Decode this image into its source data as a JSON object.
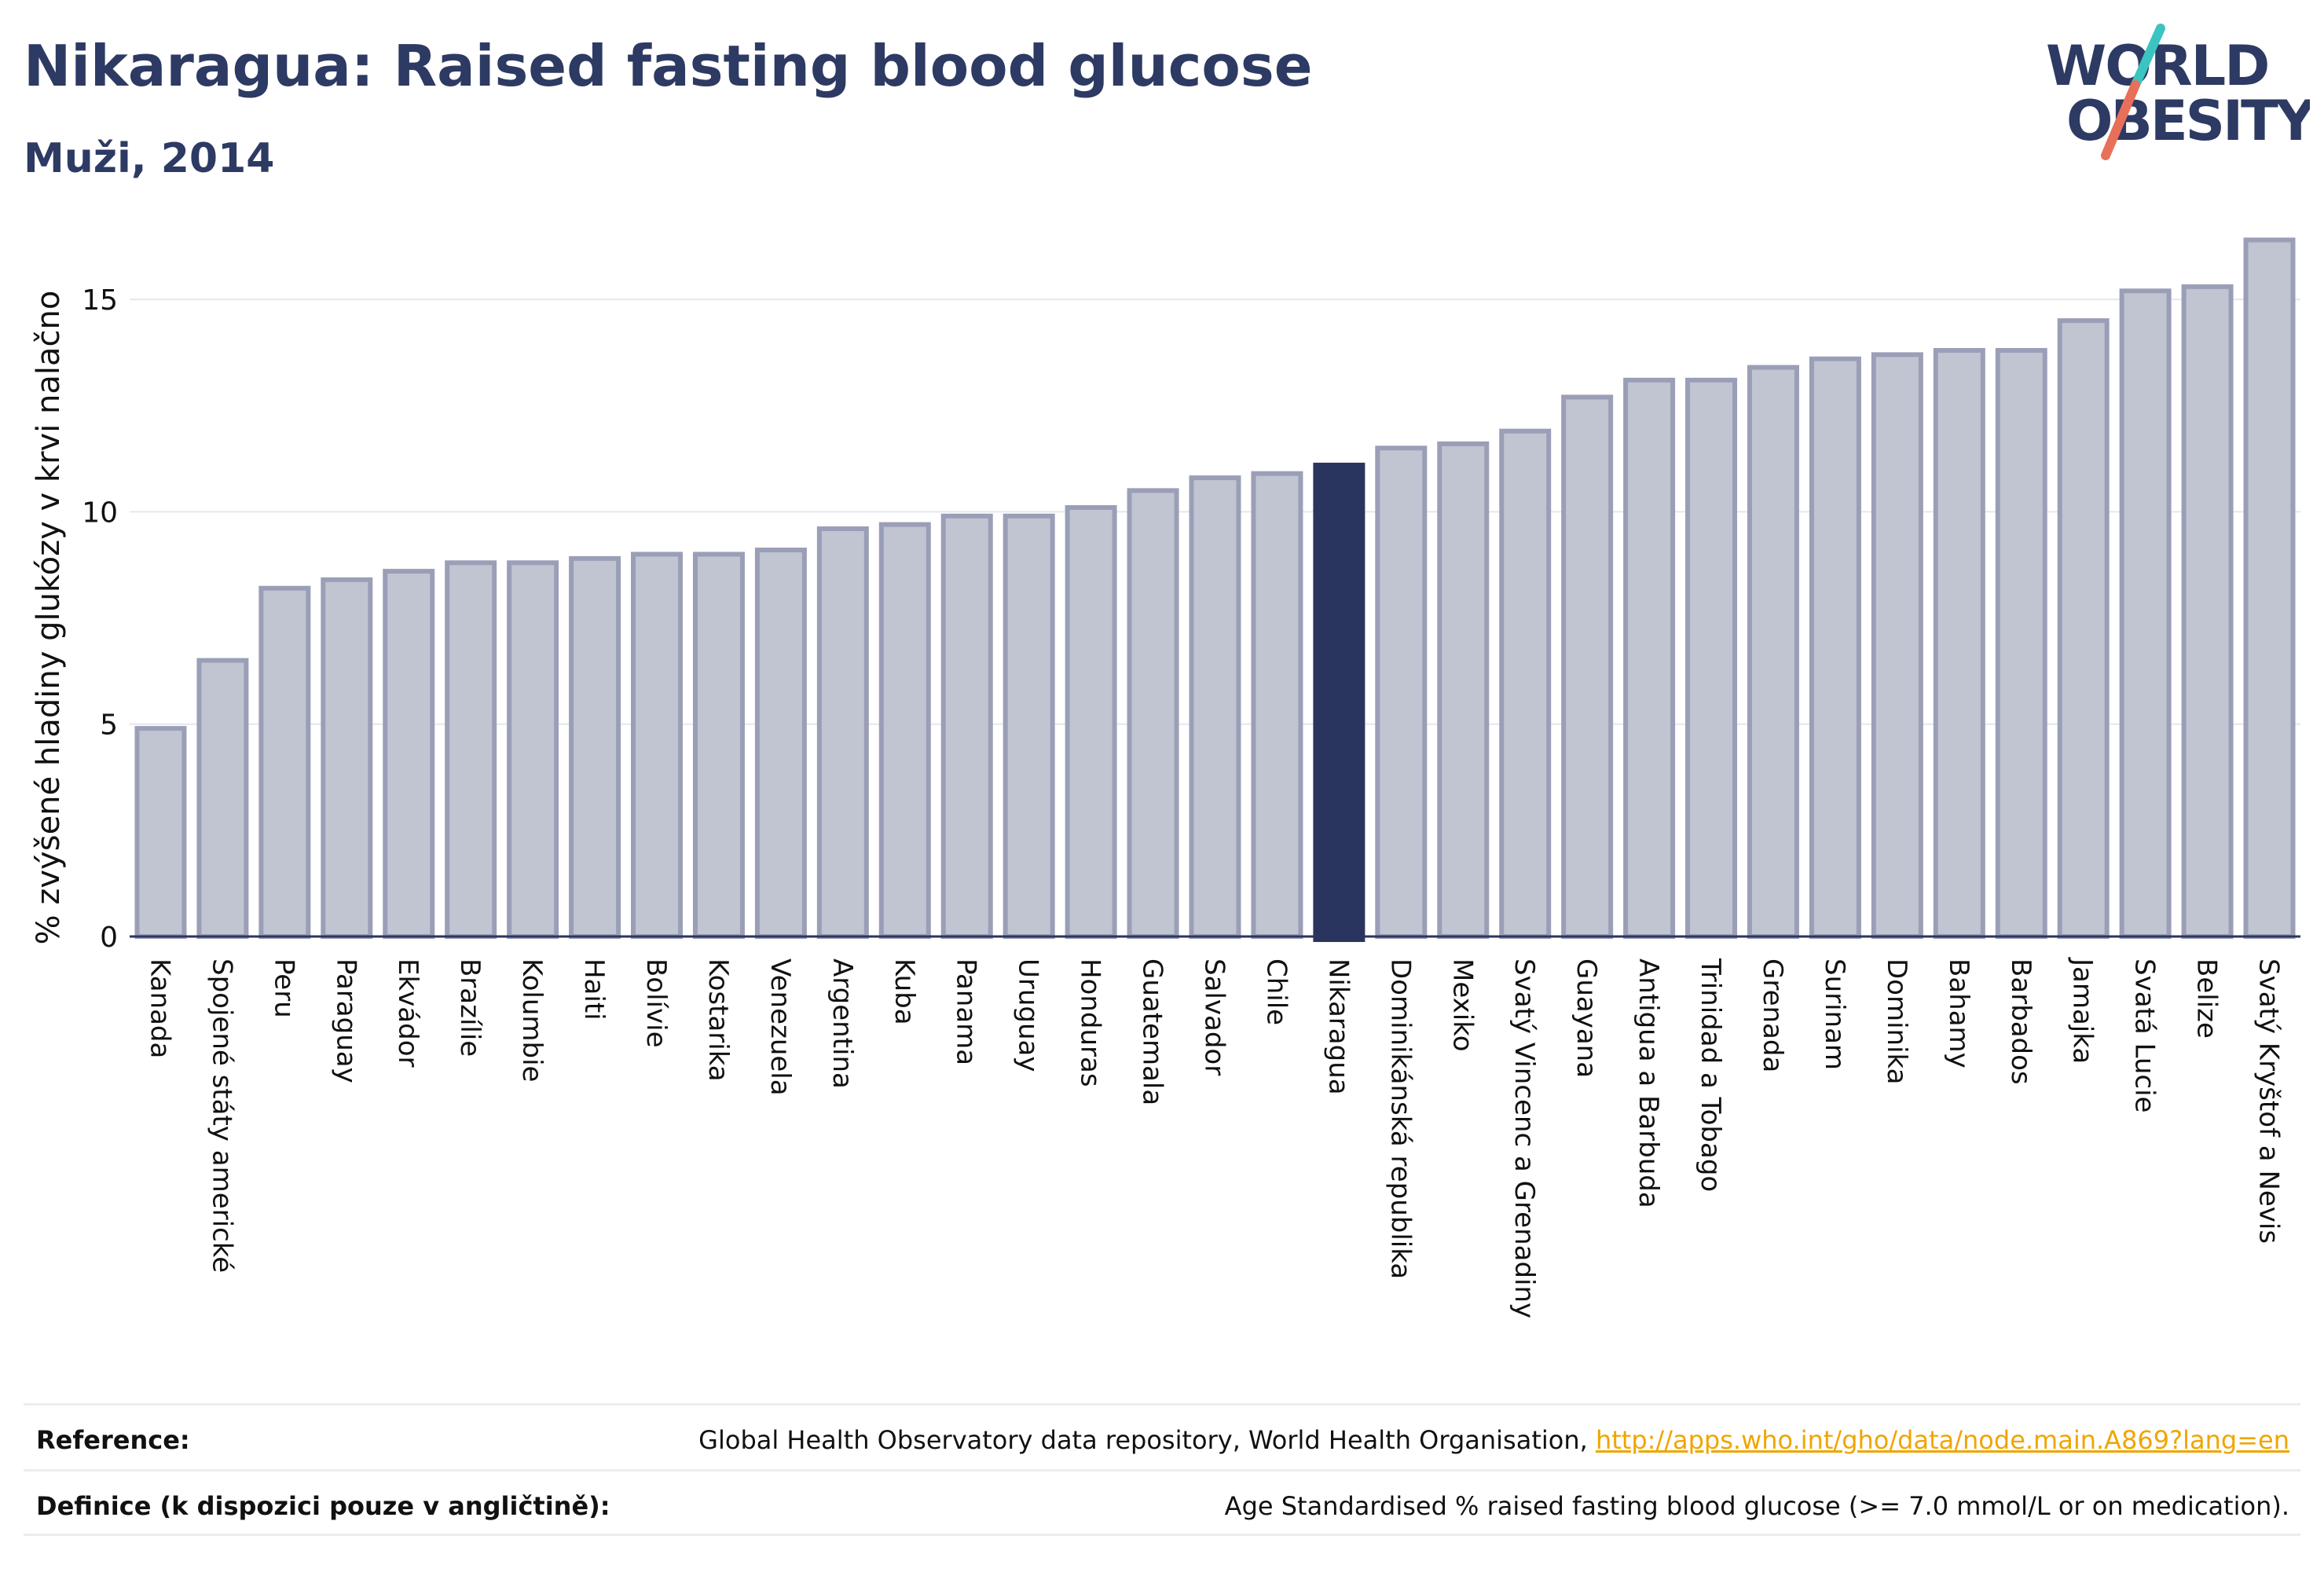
{
  "title": "Nikaragua: Raised fasting blood glucose",
  "subtitle": "Muži, 2014",
  "logo": {
    "line1": "WORLD",
    "line2": "OBESITY",
    "text_color": "#2d3a63",
    "slash_teal": "#3cc4c0",
    "slash_red": "#e8705a"
  },
  "chart_data": {
    "type": "bar",
    "ylabel": "% zvýšené hladiny glukózy v krvi nalačno",
    "xlabel": "",
    "ylim": [
      0,
      16.5
    ],
    "yticks": [
      0,
      5,
      10,
      15
    ],
    "grid": true,
    "highlight": "Nikaragua",
    "colors": {
      "bar": "#c1c4d1",
      "bar_border": "#9a9fb7",
      "highlight": "#2a355f",
      "grid": "#e6e7ee",
      "axis": "#2a355f"
    },
    "categories": [
      "Kanada",
      "Spojené státy americké",
      "Peru",
      "Paraguay",
      "Ekvádor",
      "Brazílie",
      "Kolumbie",
      "Haiti",
      "Bolívie",
      "Kostarika",
      "Venezuela",
      "Argentina",
      "Kuba",
      "Panama",
      "Uruguay",
      "Honduras",
      "Guatemala",
      "Salvador",
      "Chile",
      "Nikaragua",
      "Dominikánská republika",
      "Mexiko",
      "Svatý Vincenc a Grenadiny",
      "Guayana",
      "Antigua a Barbuda",
      "Trinidad a Tobago",
      "Grenada",
      "Surinam",
      "Dominika",
      "Bahamy",
      "Barbados",
      "Jamajka",
      "Svatá Lucie",
      "Belize",
      "Svatý Kryštof a Nevis"
    ],
    "values": [
      4.9,
      6.5,
      8.2,
      8.4,
      8.6,
      8.8,
      8.8,
      8.9,
      9.0,
      9.0,
      9.1,
      9.6,
      9.7,
      9.9,
      9.9,
      10.1,
      10.5,
      10.8,
      10.9,
      11.1,
      11.5,
      11.6,
      11.9,
      12.7,
      13.1,
      13.1,
      13.4,
      13.6,
      13.7,
      13.8,
      13.8,
      14.5,
      15.2,
      15.3,
      16.4
    ]
  },
  "footer": {
    "reference_label": "Reference:",
    "reference_text": "Global Health Observatory data repository, World Health Organisation,",
    "reference_link": "http://apps.who.int/gho/data/node.main.A869?lang=en",
    "definition_label": "Definice (k dispozici pouze v angličtině):",
    "definition_text": "Age Standardised % raised fasting blood glucose (>= 7.0 mmol/L or on medication)."
  }
}
